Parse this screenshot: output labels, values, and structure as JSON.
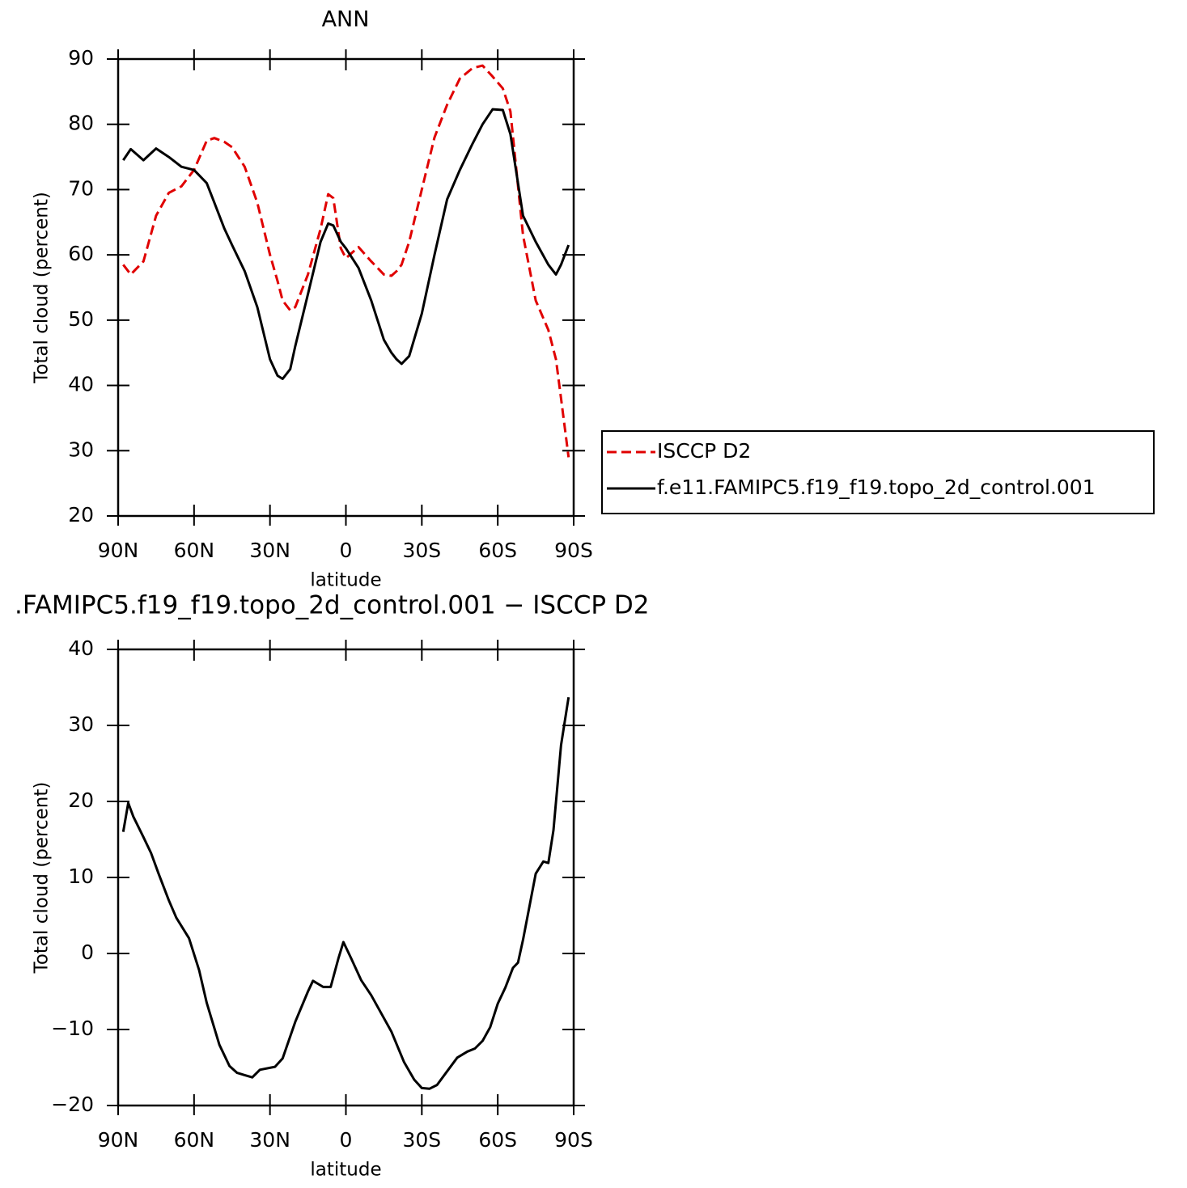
{
  "chart_data": [
    {
      "type": "line",
      "title": "ANN",
      "x_label": "latitude",
      "y_label": "Total cloud (percent)",
      "x": [
        88,
        85,
        80,
        75,
        70,
        65,
        60,
        55,
        52,
        48,
        45,
        40,
        35,
        30,
        27,
        25,
        22,
        20,
        15,
        10,
        7,
        5,
        2,
        0,
        -5,
        -10,
        -15,
        -18,
        -20,
        -22,
        -25,
        -30,
        -35,
        -40,
        -45,
        -50,
        -54,
        -58,
        -62,
        -65,
        -70,
        -75,
        -80,
        -83,
        -85,
        -88
      ],
      "series": [
        {
          "name": "ISCCP D2",
          "color": "#e00000",
          "line_style": "dashed",
          "values": [
            58.5,
            57,
            59,
            66,
            69.5,
            70.5,
            73,
            77.5,
            77.9,
            77.3,
            76.5,
            73.5,
            68,
            60,
            56,
            53,
            51.5,
            52,
            57,
            64,
            69.3,
            68.7,
            61,
            59.5,
            61.2,
            59,
            57,
            56.8,
            57.5,
            58.5,
            62,
            70,
            78,
            83,
            87,
            88.6,
            89,
            87.3,
            85.5,
            82,
            63,
            53,
            48.5,
            44,
            38,
            29
          ]
        },
        {
          "name": "f.e11.FAMIPC5.f19_f19.topo_2d_control.001",
          "color": "#000000",
          "line_style": "solid",
          "values": [
            74.5,
            76.2,
            74.5,
            76.3,
            75,
            73.5,
            73,
            71,
            68,
            64,
            61.5,
            57.5,
            52,
            44,
            41.5,
            41,
            42.5,
            46,
            54,
            62,
            64.8,
            64.5,
            62,
            61,
            58,
            53,
            47,
            45,
            44,
            43.3,
            44.5,
            51,
            60,
            68.5,
            73,
            77,
            80,
            82.3,
            82.2,
            78.5,
            66,
            62,
            58.5,
            57,
            58.5,
            61.5
          ]
        }
      ],
      "xlim": [
        90,
        -90
      ],
      "xticks": [
        {
          "value": 90,
          "label": "90N"
        },
        {
          "value": 60,
          "label": "60N"
        },
        {
          "value": 30,
          "label": "30N"
        },
        0,
        {
          "value": -30,
          "label": "30S"
        },
        {
          "value": -60,
          "label": "60S"
        },
        {
          "value": -90,
          "label": "90S"
        }
      ],
      "ylim": [
        20,
        90
      ],
      "yticks": [
        20,
        30,
        40,
        50,
        60,
        70,
        80,
        90
      ],
      "legend": "right"
    },
    {
      "type": "line",
      "title": ".FAMIPC5.f19_f19.topo_2d_control.001 − ISCCP D2",
      "x_label": "latitude",
      "y_label": "Total cloud (percent)",
      "x": [
        88,
        86,
        84,
        80,
        77,
        74,
        70,
        67,
        62,
        58,
        55,
        50,
        46,
        43,
        40,
        37,
        34,
        28,
        25,
        20,
        15,
        13,
        9,
        6,
        3,
        1,
        -2,
        -6,
        -10,
        -18,
        -23,
        -27,
        -30,
        -33,
        -36,
        -40,
        -44,
        -48,
        -51,
        -54,
        -57,
        -60,
        -63,
        -66,
        -68,
        -70,
        -73,
        -75,
        -78,
        -80,
        -82,
        -85,
        -88
      ],
      "series": [
        {
          "color": "#000000",
          "line_style": "solid",
          "values": [
            16,
            19.8,
            18,
            15.3,
            13.2,
            10.5,
            7,
            4.7,
            2,
            -2.2,
            -6.5,
            -12,
            -14.8,
            -15.7,
            -16,
            -16.3,
            -15.3,
            -14.9,
            -13.8,
            -9,
            -5,
            -3.6,
            -4.4,
            -4.4,
            -0.7,
            1.5,
            -0.6,
            -3.5,
            -5.5,
            -10.3,
            -14.3,
            -16.6,
            -17.7,
            -17.8,
            -17.3,
            -15.5,
            -13.7,
            -12.9,
            -12.5,
            -11.5,
            -9.7,
            -6.6,
            -4.5,
            -1.9,
            -1.2,
            1.8,
            7,
            10.5,
            12.1,
            11.9,
            16.2,
            27.4,
            33.7
          ]
        }
      ],
      "xlim": [
        90,
        -90
      ],
      "xticks": [
        {
          "value": 90,
          "label": "90N"
        },
        {
          "value": 60,
          "label": "60N"
        },
        {
          "value": 30,
          "label": "30N"
        },
        0,
        {
          "value": -30,
          "label": "30S"
        },
        {
          "value": -60,
          "label": "60S"
        },
        {
          "value": -90,
          "label": "90S"
        }
      ],
      "ylim": [
        -20,
        40
      ],
      "yticks": [
        {
          "value": -20,
          "label": "−20"
        },
        {
          "value": -10,
          "label": "−10"
        },
        0,
        10,
        20,
        30,
        40
      ]
    }
  ]
}
